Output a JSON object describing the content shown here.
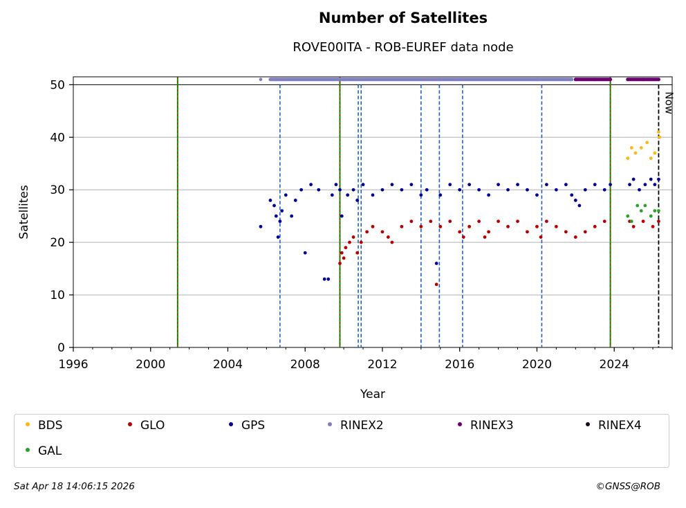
{
  "colors": {
    "BDS": "#fdb913",
    "GLO": "#b80000",
    "GPS": "#000099",
    "RINEX2": "#8080c0",
    "RINEX3": "#6a0070",
    "RINEX4": "#1a0a1a",
    "GAL": "#2ca02c",
    "dashed_blue": "#1f5fbf",
    "green_line": "#009900",
    "red_line": "#cc0000"
  },
  "chart_data": {
    "type": "scatter",
    "title": "Number of Satellites",
    "subtitle": "ROVE00ITA - ROB-EUREF data node",
    "xlabel": "Year",
    "ylabel": "Satellites",
    "xlim": [
      1996,
      2027
    ],
    "ylim": [
      0,
      51.5
    ],
    "xticks": [
      "1996",
      "2000",
      "2004",
      "2008",
      "2012",
      "2016",
      "2020",
      "2024"
    ],
    "yticks": [
      "0",
      "10",
      "20",
      "30",
      "40",
      "50"
    ],
    "grid": "horizontal",
    "legend_placement": "bottom",
    "now_label": "Now",
    "now_x": 2026.3,
    "vlines_equipment_change": [
      2001.4,
      2009.8,
      2023.8
    ],
    "vlines_dashed": [
      2006.7,
      2010.75,
      2010.9,
      2014.0,
      2014.95,
      2016.15,
      2020.25
    ],
    "series": [
      {
        "name": "GPS",
        "points": [
          [
            2005.7,
            23
          ],
          [
            2006.2,
            28
          ],
          [
            2006.4,
            27
          ],
          [
            2006.5,
            25
          ],
          [
            2006.6,
            21
          ],
          [
            2006.7,
            24
          ],
          [
            2006.8,
            26
          ],
          [
            2007.0,
            29
          ],
          [
            2007.3,
            25
          ],
          [
            2007.5,
            28
          ],
          [
            2007.8,
            30
          ],
          [
            2008.0,
            18
          ],
          [
            2008.3,
            31
          ],
          [
            2008.7,
            30
          ],
          [
            2009.0,
            13
          ],
          [
            2009.2,
            13
          ],
          [
            2009.4,
            29
          ],
          [
            2009.6,
            31
          ],
          [
            2009.8,
            30
          ],
          [
            2009.9,
            25
          ],
          [
            2010.2,
            29
          ],
          [
            2010.5,
            30
          ],
          [
            2010.7,
            28
          ],
          [
            2011.0,
            31
          ],
          [
            2011.5,
            29
          ],
          [
            2012.0,
            30
          ],
          [
            2012.5,
            31
          ],
          [
            2013.0,
            30
          ],
          [
            2013.5,
            31
          ],
          [
            2014.0,
            29
          ],
          [
            2014.3,
            30
          ],
          [
            2014.8,
            16
          ],
          [
            2015.0,
            29
          ],
          [
            2015.5,
            31
          ],
          [
            2016.0,
            30
          ],
          [
            2016.5,
            31
          ],
          [
            2017.0,
            30
          ],
          [
            2017.5,
            29
          ],
          [
            2018.0,
            31
          ],
          [
            2018.5,
            30
          ],
          [
            2019.0,
            31
          ],
          [
            2019.5,
            30
          ],
          [
            2020.0,
            29
          ],
          [
            2020.5,
            31
          ],
          [
            2021.0,
            30
          ],
          [
            2021.5,
            31
          ],
          [
            2021.8,
            29
          ],
          [
            2022.0,
            28
          ],
          [
            2022.2,
            27
          ],
          [
            2022.5,
            30
          ],
          [
            2023.0,
            31
          ],
          [
            2023.5,
            30
          ],
          [
            2023.8,
            31
          ],
          [
            2024.8,
            31
          ],
          [
            2025.0,
            32
          ],
          [
            2025.3,
            30
          ],
          [
            2025.6,
            31
          ],
          [
            2025.9,
            32
          ],
          [
            2026.1,
            31
          ],
          [
            2026.3,
            32
          ]
        ]
      },
      {
        "name": "GLO",
        "points": [
          [
            2009.8,
            16
          ],
          [
            2009.9,
            18
          ],
          [
            2010.0,
            17
          ],
          [
            2010.1,
            19
          ],
          [
            2010.3,
            20
          ],
          [
            2010.5,
            21
          ],
          [
            2010.7,
            18
          ],
          [
            2010.9,
            20
          ],
          [
            2011.2,
            22
          ],
          [
            2011.5,
            23
          ],
          [
            2012.0,
            22
          ],
          [
            2012.3,
            21
          ],
          [
            2012.5,
            20
          ],
          [
            2013.0,
            23
          ],
          [
            2013.5,
            24
          ],
          [
            2014.0,
            23
          ],
          [
            2014.5,
            24
          ],
          [
            2014.8,
            12
          ],
          [
            2015.0,
            23
          ],
          [
            2015.5,
            24
          ],
          [
            2016.0,
            22
          ],
          [
            2016.2,
            21
          ],
          [
            2016.5,
            23
          ],
          [
            2017.0,
            24
          ],
          [
            2017.3,
            21
          ],
          [
            2017.5,
            22
          ],
          [
            2018.0,
            24
          ],
          [
            2018.5,
            23
          ],
          [
            2019.0,
            24
          ],
          [
            2019.5,
            22
          ],
          [
            2020.0,
            23
          ],
          [
            2020.2,
            21
          ],
          [
            2020.5,
            24
          ],
          [
            2021.0,
            23
          ],
          [
            2021.5,
            22
          ],
          [
            2022.0,
            21
          ],
          [
            2022.5,
            22
          ],
          [
            2023.0,
            23
          ],
          [
            2023.5,
            24
          ],
          [
            2024.8,
            24
          ],
          [
            2025.0,
            23
          ],
          [
            2025.5,
            24
          ],
          [
            2026.0,
            23
          ],
          [
            2026.3,
            24
          ]
        ]
      },
      {
        "name": "GAL",
        "points": [
          [
            2024.7,
            25
          ],
          [
            2024.9,
            24
          ],
          [
            2025.2,
            27
          ],
          [
            2025.4,
            26
          ],
          [
            2025.6,
            27
          ],
          [
            2025.9,
            25
          ],
          [
            2026.1,
            26
          ],
          [
            2026.3,
            26
          ]
        ]
      },
      {
        "name": "BDS",
        "points": [
          [
            2024.7,
            36
          ],
          [
            2024.9,
            38
          ],
          [
            2025.1,
            37
          ],
          [
            2025.4,
            38
          ],
          [
            2025.7,
            39
          ],
          [
            2025.9,
            36
          ],
          [
            2026.1,
            37
          ],
          [
            2026.3,
            41
          ],
          [
            2026.35,
            40
          ]
        ]
      },
      {
        "name": "RINEX2",
        "points": [
          [
            2005.7,
            51
          ],
          [
            2006.5,
            51
          ],
          [
            2010.0,
            51
          ],
          [
            2015.0,
            51
          ],
          [
            2020.0,
            51
          ],
          [
            2021.8,
            51
          ]
        ]
      },
      {
        "name": "RINEX3",
        "points": [
          [
            2022.0,
            51
          ],
          [
            2023.0,
            51
          ],
          [
            2023.8,
            51
          ],
          [
            2024.7,
            51
          ],
          [
            2025.5,
            51
          ],
          [
            2026.3,
            51
          ]
        ]
      },
      {
        "name": "RINEX4",
        "points": []
      }
    ]
  },
  "legend": {
    "items": [
      "BDS",
      "GLO",
      "GPS",
      "RINEX2",
      "RINEX3",
      "RINEX4",
      "GAL"
    ]
  },
  "footer": {
    "date": "Sat Apr 18 14:06:15 2026",
    "credit": "©GNSS@ROB"
  }
}
